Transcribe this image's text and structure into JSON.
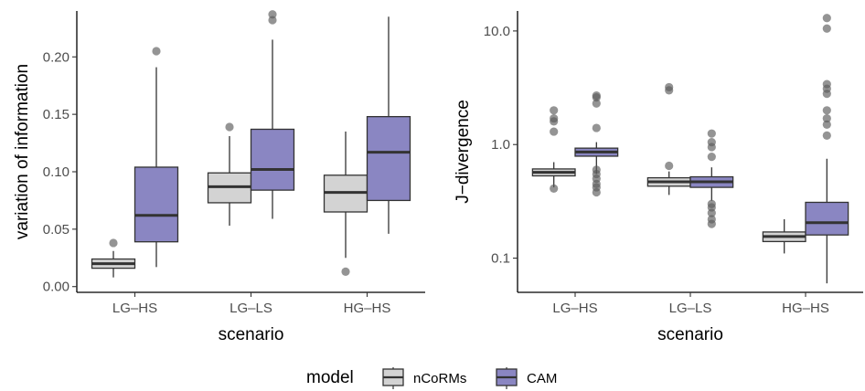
{
  "legend": {
    "title": "model",
    "placement": "bottom",
    "entries": [
      {
        "name": "nCoRMs",
        "color": "#D3D3D3"
      },
      {
        "name": "CAM",
        "color": "#8A86C2"
      }
    ]
  },
  "colors": {
    "ncorms_fill": "#D3D3D3",
    "cam_fill": "#8A86C2",
    "box_outline": "#333333",
    "outlier": "#5a5a5a"
  },
  "chart_data": [
    {
      "type": "box",
      "xlabel": "scenario",
      "ylabel": "variation of information",
      "categories": [
        "LG–HS",
        "LG–LS",
        "HG–HS"
      ],
      "yscale": "linear",
      "ylim": [
        -0.005,
        0.24
      ],
      "yticks": [
        0.0,
        0.05,
        0.1,
        0.15,
        0.2
      ],
      "ytick_labels": [
        "0.00",
        "0.05",
        "0.10",
        "0.15",
        "0.20"
      ],
      "grid": false,
      "series": [
        {
          "name": "nCoRMs",
          "boxes": [
            {
              "whisker_low": 0.008,
              "q1": 0.016,
              "median": 0.02,
              "q3": 0.024,
              "whisker_high": 0.031,
              "outliers": [
                0.038
              ]
            },
            {
              "whisker_low": 0.053,
              "q1": 0.073,
              "median": 0.087,
              "q3": 0.099,
              "whisker_high": 0.131,
              "outliers": [
                0.139
              ]
            },
            {
              "whisker_low": 0.025,
              "q1": 0.065,
              "median": 0.082,
              "q3": 0.097,
              "whisker_high": 0.135,
              "outliers": [
                0.013
              ]
            }
          ]
        },
        {
          "name": "CAM",
          "boxes": [
            {
              "whisker_low": 0.017,
              "q1": 0.039,
              "median": 0.062,
              "q3": 0.104,
              "whisker_high": 0.191,
              "outliers": [
                0.205
              ]
            },
            {
              "whisker_low": 0.059,
              "q1": 0.084,
              "median": 0.102,
              "q3": 0.137,
              "whisker_high": 0.215,
              "outliers": [
                0.232,
                0.237
              ]
            },
            {
              "whisker_low": 0.046,
              "q1": 0.075,
              "median": 0.117,
              "q3": 0.148,
              "whisker_high": 0.235,
              "outliers": []
            }
          ]
        }
      ]
    },
    {
      "type": "box",
      "xlabel": "scenario",
      "ylabel": "J−divergence",
      "categories": [
        "LG–HS",
        "LG–LS",
        "HG–HS"
      ],
      "yscale": "log",
      "ylim": [
        0.05,
        15
      ],
      "yticks": [
        0.1,
        1.0,
        10.0
      ],
      "ytick_labels": [
        "0.1",
        "1.0",
        "10.0"
      ],
      "grid": false,
      "series": [
        {
          "name": "nCoRMs",
          "boxes": [
            {
              "whisker_low": 0.42,
              "q1": 0.53,
              "median": 0.57,
              "q3": 0.61,
              "whisker_high": 0.7,
              "outliers": [
                0.41,
                1.3,
                1.6,
                1.7,
                2.0
              ]
            },
            {
              "whisker_low": 0.36,
              "q1": 0.43,
              "median": 0.47,
              "q3": 0.51,
              "whisker_high": 0.58,
              "outliers": [
                0.65,
                3.0,
                3.2
              ]
            },
            {
              "whisker_low": 0.11,
              "q1": 0.14,
              "median": 0.155,
              "q3": 0.17,
              "whisker_high": 0.22,
              "outliers": []
            }
          ]
        },
        {
          "name": "CAM",
          "boxes": [
            {
              "whisker_low": 0.55,
              "q1": 0.79,
              "median": 0.86,
              "q3": 0.93,
              "whisker_high": 1.05,
              "outliers": [
                0.38,
                0.42,
                0.45,
                0.5,
                0.55,
                0.6,
                1.4,
                2.3,
                2.6,
                2.7
              ]
            },
            {
              "whisker_low": 0.32,
              "q1": 0.42,
              "median": 0.47,
              "q3": 0.52,
              "whisker_high": 0.63,
              "outliers": [
                0.2,
                0.22,
                0.25,
                0.28,
                0.3,
                0.78,
                0.95,
                1.05,
                1.25
              ]
            },
            {
              "whisker_low": 0.06,
              "q1": 0.16,
              "median": 0.205,
              "q3": 0.31,
              "whisker_high": 0.75,
              "outliers": [
                1.2,
                1.5,
                1.7,
                2.0,
                2.8,
                3.1,
                3.4,
                10.5,
                13.0
              ]
            }
          ]
        }
      ]
    }
  ]
}
